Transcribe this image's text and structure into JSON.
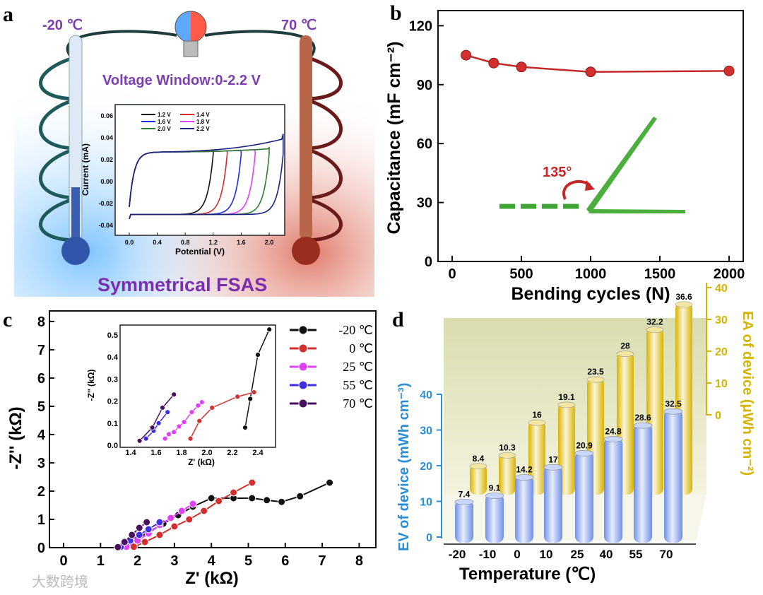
{
  "panel_labels": {
    "a": "a",
    "b": "b",
    "c": "c",
    "d": "d"
  },
  "panel_a": {
    "cold_label": "-20 ℃",
    "hot_label": "70 ℃",
    "voltage_window": "Voltage Window:0-2.2 V",
    "device_label": "Symmetrical FSAS"
  },
  "watermark": "大数跨境",
  "colors": {
    "red": "#c62828",
    "blue": "#2a8fd6",
    "gold": "#d4b400",
    "purple": "#7b1fa2"
  },
  "chart_data": [
    {
      "id": "a_inset",
      "type": "line",
      "title": "",
      "xlabel": "Potential (V)",
      "ylabel": "Current (mA)",
      "xlim": [
        -0.1,
        2.3
      ],
      "ylim": [
        -0.045,
        0.065
      ],
      "xticks": [
        "0.0",
        "0.4",
        "0.8",
        "1.2",
        "1.6",
        "2.0"
      ],
      "yticks": [
        "0.06",
        "0.04",
        "0.02",
        "0.00",
        "-0.02",
        "-0.04"
      ],
      "series": [
        {
          "name": "1.2 V",
          "vmax": 1.2,
          "color": "#111111"
        },
        {
          "name": "1.4 V",
          "vmax": 1.4,
          "color": "#d32f2f"
        },
        {
          "name": "1.6 V",
          "vmax": 1.6,
          "color": "#1e2ee0"
        },
        {
          "name": "1.8 V",
          "vmax": 1.8,
          "color": "#e040fb"
        },
        {
          "name": "2.0 V",
          "vmax": 2.0,
          "color": "#2e7d32"
        },
        {
          "name": "2.2 V",
          "vmax": 2.2,
          "color": "#1a237e"
        }
      ]
    },
    {
      "id": "b",
      "type": "line",
      "xlabel": "Bending cycles (N)",
      "ylabel": "Capacitance (mF cm⁻²)",
      "xlim": [
        -100,
        2100
      ],
      "ylim": [
        0,
        120
      ],
      "xticks": [
        "0",
        "500",
        "1000",
        "1500",
        "2000"
      ],
      "yticks": [
        "0",
        "30",
        "60",
        "90",
        "120"
      ],
      "x": [
        100,
        300,
        500,
        1000,
        2000
      ],
      "y": [
        105,
        101,
        99,
        96.5,
        97
      ],
      "annotation": "135°"
    },
    {
      "id": "c_main",
      "type": "line",
      "xlabel": "Z' (kΩ)",
      "ylabel": "-Z'' (kΩ)",
      "xlim": [
        0,
        8
      ],
      "ylim": [
        0,
        8
      ],
      "xticks": [
        "0",
        "1",
        "2",
        "3",
        "4",
        "5",
        "6",
        "7",
        "8"
      ],
      "yticks": [
        "0",
        "1",
        "2",
        "3",
        "4",
        "5",
        "6",
        "7",
        "8"
      ],
      "series": [
        {
          "name": "-20 ℃",
          "color": "#111111",
          "x": [
            1.5,
            1.9,
            2.3,
            2.7,
            3.1,
            3.5,
            4.0,
            4.6,
            5.1,
            5.5,
            5.9,
            6.4,
            7.2
          ],
          "y": [
            0.02,
            0.25,
            0.55,
            0.85,
            1.15,
            1.45,
            1.75,
            1.75,
            1.75,
            1.68,
            1.62,
            1.82,
            2.3
          ]
        },
        {
          "name": "0 ℃",
          "color": "#d32f2f",
          "x": [
            1.9,
            2.2,
            2.6,
            3.0,
            3.4,
            3.8,
            4.2,
            4.6,
            5.1
          ],
          "y": [
            0.03,
            0.2,
            0.45,
            0.75,
            1.0,
            1.3,
            1.65,
            1.95,
            2.3
          ]
        },
        {
          "name": "25 ℃",
          "color": "#e040fb",
          "x": [
            1.7,
            2.0,
            2.3,
            2.6,
            2.9,
            3.2,
            3.5
          ],
          "y": [
            0.03,
            0.25,
            0.5,
            0.8,
            1.05,
            1.3,
            1.55
          ]
        },
        {
          "name": "55 ℃",
          "color": "#3d2ee0",
          "x": [
            1.55,
            1.8,
            2.05,
            2.3,
            2.6
          ],
          "y": [
            0.03,
            0.25,
            0.45,
            0.65,
            0.9
          ]
        },
        {
          "name": "70 ℃",
          "color": "#4a1060",
          "x": [
            1.47,
            1.65,
            1.85,
            2.05,
            2.25
          ],
          "y": [
            0.02,
            0.2,
            0.45,
            0.7,
            0.9
          ]
        }
      ]
    },
    {
      "id": "c_inset",
      "type": "line",
      "xlabel": "Z' (kΩ)",
      "ylabel": "-Z'' (kΩ)",
      "xlim": [
        1.4,
        2.5
      ],
      "ylim": [
        0,
        0.55
      ],
      "xticks": [
        "1.4",
        "1.6",
        "1.8",
        "2.0",
        "2.2",
        "2.4"
      ],
      "yticks": [
        "0.0",
        "0.1",
        "0.2",
        "0.3",
        "0.4",
        "0.5"
      ],
      "series": [
        {
          "name": "-20 ℃",
          "color": "#111111",
          "x": [
            2.3,
            2.34,
            2.4,
            2.49
          ],
          "y": [
            0.08,
            0.21,
            0.41,
            0.525
          ]
        },
        {
          "name": "0 ℃",
          "color": "#d32f2f",
          "x": [
            1.87,
            1.94,
            2.04,
            2.24,
            2.37
          ],
          "y": [
            0.03,
            0.11,
            0.17,
            0.22,
            0.24
          ]
        },
        {
          "name": "25 ℃",
          "color": "#e040fb",
          "x": [
            1.67,
            1.7,
            1.74,
            1.78,
            1.82,
            1.88,
            1.93,
            1.96
          ],
          "y": [
            0.03,
            0.05,
            0.06,
            0.085,
            0.105,
            0.15,
            0.18,
            0.195
          ]
        },
        {
          "name": "55 ℃",
          "color": "#3d2ee0",
          "x": [
            1.52,
            1.58,
            1.62,
            1.69
          ],
          "y": [
            0.03,
            0.065,
            0.1,
            0.15
          ]
        },
        {
          "name": "70 ℃",
          "color": "#4a1060",
          "x": [
            1.47,
            1.57,
            1.65,
            1.74
          ],
          "y": [
            0.02,
            0.08,
            0.17,
            0.23
          ]
        }
      ]
    },
    {
      "id": "d",
      "type": "bar",
      "xlabel": "Temperature (℃)",
      "ylabel_left": "EV of device (mWh cm⁻³)",
      "ylabel_right": "EA of device (μWh cm⁻²)",
      "categories": [
        "-20",
        "-10",
        "0",
        "10",
        "25",
        "40",
        "55",
        "70"
      ],
      "yticks_left": [
        "0",
        "10",
        "20",
        "30",
        "40"
      ],
      "yticks_right": [
        "0",
        "10",
        "20",
        "30",
        "40"
      ],
      "ylim": [
        0,
        40
      ],
      "series": [
        {
          "name": "EV",
          "color": "#7b9cf0",
          "values": [
            7.4,
            9.1,
            14.2,
            17,
            20.9,
            24.8,
            28.6,
            32.5
          ]
        },
        {
          "name": "EA",
          "color": "#e6c21a",
          "values": [
            8.4,
            10.3,
            16,
            19.1,
            23.5,
            28,
            32.2,
            36.6
          ]
        }
      ]
    }
  ]
}
